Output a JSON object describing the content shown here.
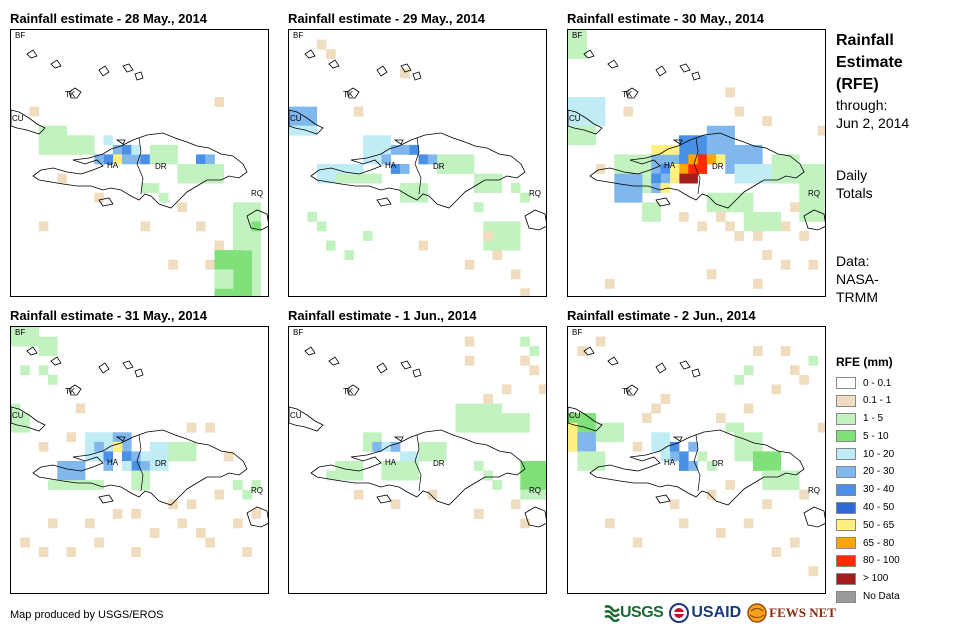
{
  "panels": [
    {
      "title": "Rainfall estimate - 28 May., 2014",
      "key": "may28"
    },
    {
      "title": "Rainfall estimate - 29 May., 2014",
      "key": "may29"
    },
    {
      "title": "Rainfall estimate - 30 May., 2014",
      "key": "may30"
    },
    {
      "title": "Rainfall estimate - 31 May., 2014",
      "key": "may31"
    },
    {
      "title": "Rainfall estimate - 1 Jun., 2014",
      "key": "jun1"
    },
    {
      "title": "Rainfall estimate - 2 Jun., 2014",
      "key": "jun2"
    }
  ],
  "map_labels": {
    "bf": "BF",
    "cu": "CU",
    "tk": "TK",
    "ha": "HA",
    "dr": "DR",
    "rq": "RQ"
  },
  "side": {
    "title_line1": "Rainfall",
    "title_line2": "Estimate",
    "title_line3": "(RFE)",
    "through_label": "through:",
    "through_date": "Jun 2, 2014",
    "daily1": "Daily",
    "daily2": "Totals",
    "data_label": "Data:",
    "data_source1": "NASA-",
    "data_source2": "TRMM"
  },
  "legend": {
    "title": "RFE (mm)",
    "classes": [
      {
        "label": "0 - 0.1",
        "color": "#ffffff"
      },
      {
        "label": "0.1 - 1",
        "color": "#f0dcbe"
      },
      {
        "label": "1 - 5",
        "color": "#c2f2c0"
      },
      {
        "label": "5 - 10",
        "color": "#80e07a"
      },
      {
        "label": "10 - 20",
        "color": "#c0ecf6"
      },
      {
        "label": "20 - 30",
        "color": "#80b8ee"
      },
      {
        "label": "30 - 40",
        "color": "#4a90e6"
      },
      {
        "label": "40 - 50",
        "color": "#2e6ad4"
      },
      {
        "label": "50 - 65",
        "color": "#fff080"
      },
      {
        "label": "65 - 80",
        "color": "#ffa500"
      },
      {
        "label": "80 - 100",
        "color": "#ff2a00"
      },
      {
        "label": "> 100",
        "color": "#a41c1c"
      },
      {
        "label": "No Data",
        "color": "#9a9a9a"
      }
    ]
  },
  "footer": {
    "credit": "Map produced by USGS/EROS",
    "logos": [
      "USGS",
      "USAID",
      "FEWS NET"
    ]
  }
}
